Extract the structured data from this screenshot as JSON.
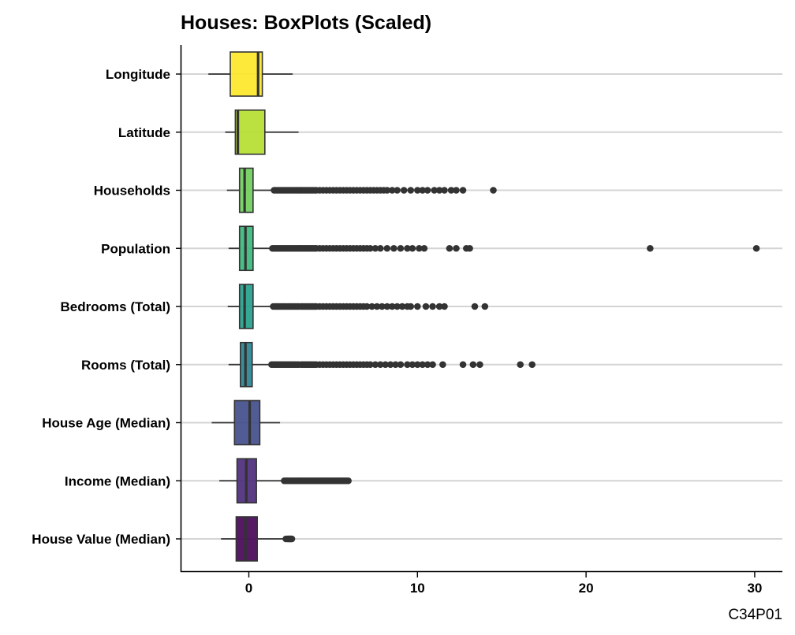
{
  "chart_data": {
    "type": "boxplot",
    "orientation": "horizontal",
    "title": "Houses: BoxPlots (Scaled)",
    "caption": "C34P01",
    "xlabel": "",
    "ylabel": "",
    "xlim": [
      -4,
      32
    ],
    "x_ticks": [
      0,
      10,
      20,
      30
    ],
    "grid": "horizontal major lines only",
    "legend": "none",
    "palette": "viridis",
    "series": [
      {
        "category": "Longitude",
        "color": "#FDE725",
        "whisker_low": -2.4,
        "q1": -1.1,
        "median": 0.55,
        "q3": 0.8,
        "whisker_high": 2.6,
        "outliers": []
      },
      {
        "category": "Latitude",
        "color": "#B4DE2C",
        "whisker_low": -1.4,
        "q1": -0.8,
        "median": -0.65,
        "q3": 0.95,
        "whisker_high": 2.95,
        "outliers": []
      },
      {
        "category": "Households",
        "color": "#6DCD59",
        "whisker_low": -1.3,
        "q1": -0.55,
        "median": -0.25,
        "q3": 0.25,
        "whisker_high": 1.5,
        "outliers": [
          1.5,
          1.6,
          1.7,
          1.8,
          1.9,
          2.0,
          2.1,
          2.2,
          2.3,
          2.4,
          2.5,
          2.6,
          2.7,
          2.8,
          2.9,
          3.0,
          3.1,
          3.2,
          3.3,
          3.4,
          3.5,
          3.6,
          3.7,
          3.8,
          3.9,
          4.0,
          4.2,
          4.4,
          4.6,
          4.8,
          5.0,
          5.2,
          5.4,
          5.6,
          5.8,
          6.0,
          6.2,
          6.4,
          6.6,
          6.8,
          7.0,
          7.2,
          7.4,
          7.6,
          7.8,
          8.0,
          8.2,
          8.5,
          8.8,
          9.2,
          9.6,
          10.0,
          10.3,
          10.6,
          11.0,
          11.3,
          11.6,
          12.0,
          12.3,
          12.7,
          14.5
        ]
      },
      {
        "category": "Population",
        "color": "#35B779",
        "whisker_low": -1.2,
        "q1": -0.55,
        "median": -0.2,
        "q3": 0.25,
        "whisker_high": 1.4,
        "outliers": [
          1.4,
          1.5,
          1.6,
          1.7,
          1.8,
          1.9,
          2.0,
          2.1,
          2.2,
          2.3,
          2.4,
          2.5,
          2.6,
          2.7,
          2.8,
          2.9,
          3.0,
          3.1,
          3.2,
          3.3,
          3.4,
          3.5,
          3.6,
          3.7,
          3.8,
          3.9,
          4.0,
          4.2,
          4.4,
          4.6,
          4.8,
          5.0,
          5.2,
          5.4,
          5.6,
          5.8,
          6.0,
          6.2,
          6.4,
          6.6,
          6.8,
          7.0,
          7.2,
          7.5,
          7.8,
          8.2,
          8.6,
          9.0,
          9.4,
          9.7,
          10.1,
          10.4,
          11.9,
          12.3,
          12.9,
          13.1,
          23.8,
          30.1
        ]
      },
      {
        "category": "Bedrooms (Total)",
        "color": "#1F9E89",
        "whisker_low": -1.25,
        "q1": -0.55,
        "median": -0.25,
        "q3": 0.25,
        "whisker_high": 1.45,
        "outliers": [
          1.45,
          1.55,
          1.65,
          1.75,
          1.85,
          1.95,
          2.05,
          2.15,
          2.25,
          2.35,
          2.45,
          2.55,
          2.65,
          2.75,
          2.85,
          2.95,
          3.1,
          3.2,
          3.3,
          3.4,
          3.5,
          3.6,
          3.7,
          3.8,
          3.9,
          4.0,
          4.2,
          4.4,
          4.6,
          4.8,
          5.0,
          5.2,
          5.4,
          5.6,
          5.8,
          6.0,
          6.2,
          6.4,
          6.6,
          6.8,
          7.0,
          7.3,
          7.6,
          7.9,
          8.2,
          8.5,
          8.8,
          9.1,
          9.4,
          9.6,
          10.0,
          10.5,
          10.9,
          11.3,
          11.6,
          13.4,
          14.0
        ]
      },
      {
        "category": "Rooms (Total)",
        "color": "#26828E",
        "whisker_low": -1.2,
        "q1": -0.5,
        "median": -0.2,
        "q3": 0.2,
        "whisker_high": 1.35,
        "outliers": [
          1.35,
          1.45,
          1.55,
          1.65,
          1.75,
          1.85,
          1.95,
          2.05,
          2.15,
          2.25,
          2.35,
          2.45,
          2.55,
          2.65,
          2.75,
          2.85,
          2.95,
          3.1,
          3.2,
          3.3,
          3.4,
          3.5,
          3.6,
          3.7,
          3.8,
          3.9,
          4.0,
          4.2,
          4.4,
          4.6,
          4.8,
          5.0,
          5.2,
          5.4,
          5.6,
          5.8,
          6.0,
          6.2,
          6.4,
          6.6,
          6.8,
          7.0,
          7.2,
          7.5,
          7.8,
          8.1,
          8.4,
          8.7,
          9.0,
          9.4,
          9.7,
          10.0,
          10.3,
          10.6,
          10.9,
          11.5,
          12.7,
          13.3,
          13.7,
          16.1,
          16.8
        ]
      },
      {
        "category": "House Age (Median)",
        "color": "#3E4A89",
        "whisker_low": -2.2,
        "q1": -0.85,
        "median": 0.05,
        "q3": 0.65,
        "whisker_high": 1.85,
        "outliers": []
      },
      {
        "category": "Income (Median)",
        "color": "#482878",
        "whisker_low": -1.75,
        "q1": -0.7,
        "median": -0.15,
        "q3": 0.45,
        "whisker_high": 2.1,
        "outliers": [
          2.1,
          2.2,
          2.3,
          2.4,
          2.5,
          2.6,
          2.7,
          2.8,
          2.9,
          3.0,
          3.1,
          3.2,
          3.3,
          3.4,
          3.5,
          3.6,
          3.7,
          3.8,
          3.9,
          4.0,
          4.1,
          4.2,
          4.3,
          4.4,
          4.5,
          4.6,
          4.7,
          4.8,
          4.9,
          5.0,
          5.1,
          5.2,
          5.3,
          5.4,
          5.5,
          5.6,
          5.7,
          5.8,
          5.9
        ]
      },
      {
        "category": "House Value (Median)",
        "color": "#440154",
        "whisker_low": -1.65,
        "q1": -0.75,
        "median": -0.2,
        "q3": 0.5,
        "whisker_high": 2.5,
        "outliers": [
          2.2,
          2.3,
          2.35,
          2.4,
          2.45,
          2.5,
          2.55
        ]
      }
    ]
  }
}
